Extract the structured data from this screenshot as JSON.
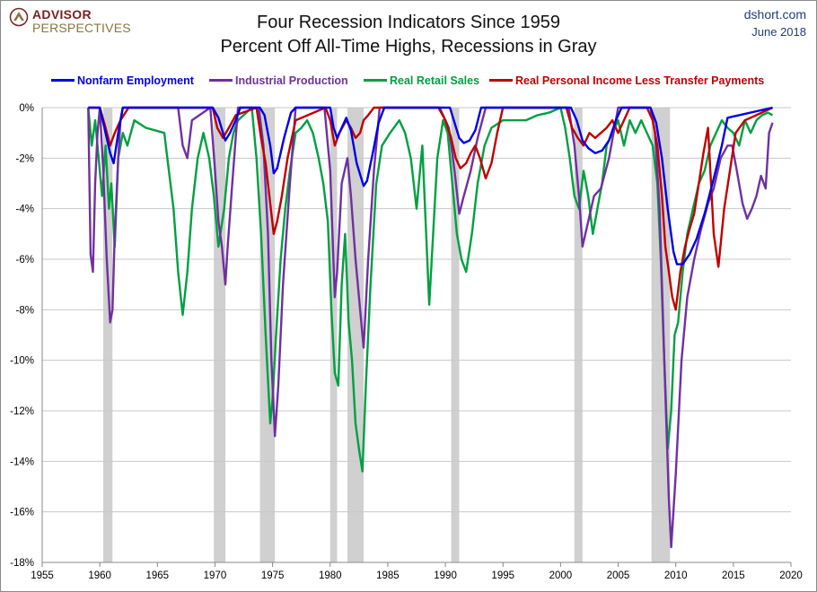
{
  "header": {
    "logo_line1": "ADVISOR",
    "logo_line2": "PERSPECTIVES",
    "source": "dshort.com",
    "date": "June 2018"
  },
  "chart_data": {
    "type": "line",
    "title": "Four Recession Indicators Since 1959",
    "subtitle": "Percent Off All-Time Highs, Recessions in Gray",
    "xlabel": "",
    "ylabel": "",
    "xlim": [
      1955,
      2020
    ],
    "ylim": [
      -18,
      0
    ],
    "x_ticks": [
      1955,
      1960,
      1965,
      1970,
      1975,
      1980,
      1985,
      1990,
      1995,
      2000,
      2005,
      2010,
      2015,
      2020
    ],
    "y_ticks": [
      0,
      -2,
      -4,
      -6,
      -8,
      -10,
      -12,
      -14,
      -16,
      -18
    ],
    "y_tick_labels": [
      "0%",
      "-2%",
      "-4%",
      "-6%",
      "-8%",
      "-10%",
      "-12%",
      "-14%",
      "-16%",
      "-18%"
    ],
    "grid": "horizontal",
    "legend_position": "top",
    "recessions": [
      [
        1960.3,
        1961.1
      ],
      [
        1969.9,
        1970.9
      ],
      [
        1973.9,
        1975.2
      ],
      [
        1980.0,
        1980.6
      ],
      [
        1981.5,
        1982.9
      ],
      [
        1990.5,
        1991.2
      ],
      [
        2001.2,
        2001.9
      ],
      [
        2007.9,
        2009.5
      ]
    ],
    "series": [
      {
        "name": "Nonfarm Employment",
        "color": "#0000e6",
        "x": [
          1959.0,
          1959.5,
          1960.0,
          1960.4,
          1960.9,
          1961.2,
          1961.6,
          1962.0,
          1969.8,
          1970.3,
          1970.9,
          1971.3,
          1971.8,
          1972.2,
          1973.9,
          1974.3,
          1974.8,
          1975.1,
          1975.4,
          1976.0,
          1976.6,
          1977.0,
          1980.0,
          1980.3,
          1980.6,
          1981.0,
          1981.4,
          1981.8,
          1982.3,
          1982.9,
          1983.2,
          1983.7,
          1984.2,
          1984.7,
          1990.4,
          1990.8,
          1991.2,
          1991.6,
          1992.1,
          1992.6,
          1993.1,
          2000.9,
          2001.4,
          2001.9,
          2002.4,
          2003.0,
          2003.6,
          2004.2,
          2004.8,
          2005.3,
          2007.8,
          2008.3,
          2008.8,
          2009.3,
          2009.8,
          2010.1,
          2010.6,
          2011.2,
          2011.8,
          2012.5,
          2013.3,
          2014.0,
          2014.5,
          2018.4
        ],
        "y": [
          0,
          0,
          0,
          -0.8,
          -1.8,
          -2.2,
          -1.0,
          0,
          0,
          -0.4,
          -1.3,
          -1.0,
          -0.5,
          0,
          0,
          -0.3,
          -1.5,
          -2.6,
          -2.4,
          -1.2,
          -0.2,
          0,
          0,
          -0.8,
          -1.2,
          -0.8,
          -0.4,
          -0.9,
          -2.2,
          -3.1,
          -2.9,
          -1.8,
          -0.6,
          0,
          0,
          -0.6,
          -1.2,
          -1.4,
          -1.3,
          -0.9,
          0,
          0,
          -0.5,
          -1.3,
          -1.6,
          -1.8,
          -1.7,
          -1.3,
          -0.5,
          0,
          0,
          -0.6,
          -2.0,
          -4.0,
          -5.7,
          -6.2,
          -6.2,
          -5.8,
          -5.2,
          -4.2,
          -2.8,
          -1.5,
          -0.4,
          0
        ]
      },
      {
        "name": "Industrial Production",
        "color": "#7030a0",
        "x": [
          1959.0,
          1959.2,
          1959.4,
          1959.6,
          1959.8,
          1960.0,
          1960.3,
          1960.6,
          1960.9,
          1961.1,
          1961.3,
          1961.6,
          1961.8,
          1962.0,
          1966.8,
          1967.2,
          1967.6,
          1968.0,
          1969.6,
          1970.0,
          1970.3,
          1970.6,
          1970.9,
          1971.1,
          1971.5,
          1972.0,
          1973.8,
          1974.2,
          1974.6,
          1974.9,
          1975.2,
          1975.5,
          1975.9,
          1976.5,
          1977.0,
          1979.5,
          1980.0,
          1980.4,
          1980.6,
          1981.0,
          1981.5,
          1981.8,
          1982.2,
          1982.6,
          1982.9,
          1983.3,
          1983.8,
          1984.3,
          1989.5,
          1990.3,
          1990.8,
          1991.2,
          1991.6,
          1992.2,
          1992.8,
          1993.5,
          2000.7,
          2001.2,
          2001.6,
          2001.9,
          2002.4,
          2002.9,
          2003.5,
          2004.2,
          2005.0,
          2007.8,
          2008.2,
          2008.6,
          2009.0,
          2009.4,
          2009.6,
          2010.0,
          2010.5,
          2011.0,
          2011.6,
          2012.2,
          2012.8,
          2013.3,
          2013.9,
          2014.5,
          2014.9,
          2015.3,
          2015.8,
          2016.2,
          2016.6,
          2017.0,
          2017.4,
          2017.8,
          2018.1,
          2018.4
        ],
        "y": [
          0,
          -5.8,
          -6.5,
          -3.0,
          -1.0,
          0,
          -2.5,
          -6.0,
          -8.5,
          -8.0,
          -5.0,
          -2.0,
          -0.5,
          0,
          0,
          -1.5,
          -2.0,
          -0.5,
          0,
          -2.5,
          -4.5,
          -5.5,
          -7.0,
          -5.5,
          -3.0,
          0,
          0,
          -1.5,
          -5.0,
          -10.0,
          -13.0,
          -11.0,
          -7.0,
          -3.0,
          0,
          0,
          -2.5,
          -7.5,
          -6.5,
          -3.0,
          -2.0,
          -3.5,
          -6.0,
          -8.0,
          -9.5,
          -6.0,
          -2.5,
          0,
          0,
          -0.8,
          -2.5,
          -4.2,
          -3.5,
          -2.5,
          -1.2,
          0,
          0,
          -1.5,
          -3.5,
          -5.5,
          -4.5,
          -3.5,
          -3.2,
          -2.0,
          0,
          0,
          -1.0,
          -4.0,
          -10.0,
          -15.5,
          -17.4,
          -14.5,
          -10.0,
          -7.5,
          -6.0,
          -4.8,
          -3.8,
          -3.2,
          -2.0,
          -1.5,
          -1.5,
          -2.5,
          -3.8,
          -4.4,
          -4.0,
          -3.5,
          -2.7,
          -3.2,
          -1.0,
          -0.6
        ]
      },
      {
        "name": "Real Retail Sales",
        "color": "#00a040",
        "x": [
          1959.0,
          1959.3,
          1959.6,
          1959.9,
          1960.2,
          1960.5,
          1960.8,
          1961.0,
          1961.3,
          1961.6,
          1962.0,
          1962.4,
          1963.0,
          1964.0,
          1965.6,
          1966.0,
          1966.4,
          1966.8,
          1967.2,
          1967.6,
          1968.0,
          1968.5,
          1969.0,
          1969.5,
          1969.9,
          1970.3,
          1970.8,
          1971.2,
          1971.6,
          1972.0,
          1973.2,
          1973.6,
          1974.0,
          1974.4,
          1974.8,
          1975.0,
          1975.3,
          1975.7,
          1976.1,
          1976.5,
          1977.0,
          1977.5,
          1978.0,
          1978.5,
          1979.0,
          1979.4,
          1979.8,
          1980.1,
          1980.4,
          1980.7,
          1981.0,
          1981.3,
          1981.6,
          1981.9,
          1982.2,
          1982.5,
          1982.8,
          1983.1,
          1983.5,
          1984.0,
          1984.5,
          1985.2,
          1986.0,
          1986.5,
          1987.0,
          1987.5,
          1988.0,
          1988.6,
          1989.3,
          1989.8,
          1990.2,
          1990.6,
          1991.0,
          1991.4,
          1991.8,
          1992.3,
          1992.8,
          1993.4,
          1994.0,
          1995.0,
          1996.0,
          1997.0,
          1998.0,
          1999.0,
          2000.0,
          2000.4,
          2000.8,
          2001.2,
          2001.6,
          2002.0,
          2002.4,
          2002.8,
          2003.2,
          2003.6,
          2004.0,
          2004.5,
          2005.0,
          2005.5,
          2006.0,
          2006.5,
          2007.0,
          2007.5,
          2008.0,
          2008.4,
          2008.7,
          2009.0,
          2009.3,
          2009.6,
          2009.9,
          2010.2,
          2010.6,
          2011.0,
          2011.5,
          2012.0,
          2012.5,
          2013.0,
          2013.5,
          2014.0,
          2014.5,
          2015.0,
          2015.5,
          2016.0,
          2016.5,
          2017.0,
          2017.5,
          2018.0,
          2018.4
        ],
        "y": [
          0,
          -1.5,
          -0.5,
          -2.0,
          -3.5,
          -1.5,
          -4.0,
          -3.0,
          -5.5,
          -2.0,
          -1.0,
          -1.5,
          -0.5,
          -0.8,
          -1.0,
          -2.5,
          -4.0,
          -6.5,
          -8.2,
          -6.5,
          -4.0,
          -2.0,
          -1.0,
          -2.0,
          -3.5,
          -5.5,
          -4.0,
          -2.0,
          -1.0,
          -0.5,
          0,
          -2.0,
          -5.0,
          -9.0,
          -12.5,
          -11.5,
          -9.0,
          -6.0,
          -4.0,
          -2.5,
          -1.0,
          -0.8,
          -0.5,
          -1.0,
          -2.0,
          -3.0,
          -4.5,
          -8.0,
          -10.5,
          -11.0,
          -7.0,
          -5.0,
          -8.5,
          -10.0,
          -12.5,
          -13.5,
          -14.4,
          -11.0,
          -7.0,
          -3.0,
          -1.5,
          -1.0,
          -0.5,
          -1.0,
          -2.0,
          -4.0,
          -1.5,
          -7.8,
          -2.0,
          -0.5,
          -1.0,
          -3.0,
          -5.0,
          -6.0,
          -6.5,
          -5.0,
          -3.0,
          -1.5,
          -0.8,
          -0.5,
          -0.5,
          -0.5,
          -0.3,
          -0.2,
          0,
          -0.8,
          -2.0,
          -3.5,
          -4.0,
          -2.5,
          -3.5,
          -5.0,
          -4.0,
          -3.0,
          -1.5,
          -1.0,
          -0.5,
          -1.5,
          -0.5,
          -1.0,
          -0.5,
          -1.0,
          -1.5,
          -3.0,
          -6.0,
          -10.0,
          -13.5,
          -12.0,
          -9.0,
          -8.5,
          -6.5,
          -5.0,
          -4.0,
          -3.0,
          -2.5,
          -1.5,
          -1.0,
          -0.5,
          -0.8,
          -1.0,
          -1.5,
          -0.5,
          -1.0,
          -0.5,
          -0.3,
          -0.2,
          -0.3
        ]
      },
      {
        "name": "Real Personal Income Less Transfer Payments",
        "color": "#c00000",
        "x": [
          1959.0,
          1960.0,
          1960.5,
          1960.9,
          1961.3,
          1961.8,
          1962.5,
          1964.0,
          1966.0,
          1968.0,
          1969.8,
          1970.2,
          1970.7,
          1971.2,
          1971.8,
          1973.6,
          1974.0,
          1974.4,
          1974.8,
          1975.1,
          1975.4,
          1975.8,
          1976.3,
          1977.0,
          1979.6,
          1980.0,
          1980.4,
          1980.8,
          1981.4,
          1981.8,
          1982.2,
          1982.6,
          1982.9,
          1983.3,
          1983.8,
          1984.5,
          1989.4,
          1990.0,
          1990.5,
          1990.9,
          1991.3,
          1991.8,
          1992.2,
          1992.6,
          1993.0,
          1993.5,
          1994.0,
          1994.5,
          1995.0,
          2000.5,
          2001.0,
          2001.5,
          2002.0,
          2002.5,
          2003.0,
          2003.5,
          2004.0,
          2004.5,
          2005.0,
          2005.5,
          2006.0,
          2007.5,
          2008.0,
          2008.4,
          2008.8,
          2009.1,
          2009.4,
          2009.7,
          2010.0,
          2010.4,
          2010.8,
          2011.2,
          2011.6,
          2012.0,
          2012.4,
          2012.8,
          2013.0,
          2013.3,
          2013.7,
          2014.2,
          2014.7,
          2015.2,
          2016.0,
          2017.0,
          2018.4
        ],
        "y": [
          0,
          0,
          -0.8,
          -1.5,
          -1.0,
          -0.5,
          0,
          0,
          0,
          0,
          0,
          -0.8,
          -1.2,
          -0.8,
          -0.3,
          0,
          -1.2,
          -2.2,
          -3.8,
          -5.0,
          -4.5,
          -3.5,
          -2.0,
          -0.5,
          0,
          -0.5,
          -1.5,
          -1.0,
          -0.5,
          -0.8,
          -1.2,
          -1.0,
          -0.5,
          -0.3,
          0,
          0,
          0,
          -0.5,
          -1.2,
          -2.0,
          -2.4,
          -2.2,
          -1.8,
          -1.5,
          -2.0,
          -2.8,
          -2.2,
          -1.0,
          0,
          0,
          -0.8,
          -1.2,
          -1.5,
          -1.0,
          -1.2,
          -1.0,
          -0.8,
          -0.5,
          -1.0,
          -0.5,
          0,
          0,
          -0.5,
          -1.5,
          -3.5,
          -5.5,
          -6.5,
          -7.5,
          -8.0,
          -6.5,
          -5.5,
          -4.8,
          -4.2,
          -3.0,
          -1.8,
          -0.8,
          -2.5,
          -5.0,
          -6.3,
          -4.0,
          -2.5,
          -1.0,
          -0.5,
          -0.3,
          0
        ]
      }
    ]
  }
}
